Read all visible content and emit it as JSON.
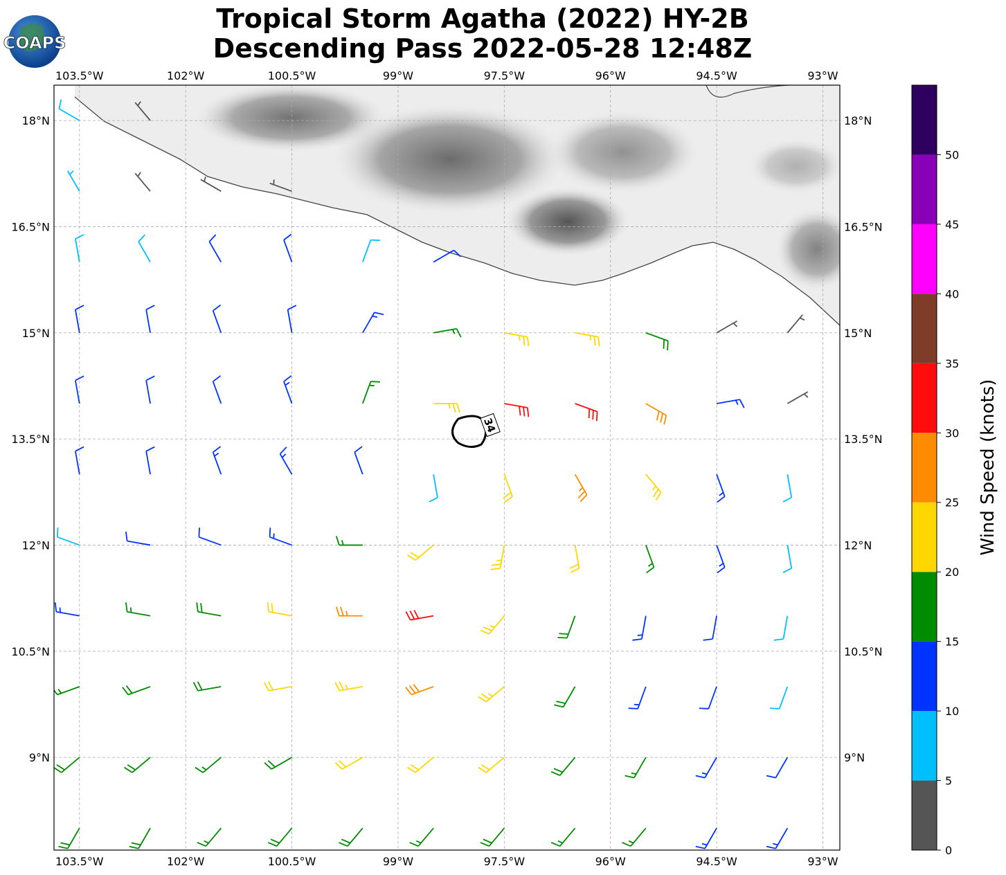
{
  "chart_data": {
    "type": "wind_barbs",
    "title": "Tropical Storm Agatha (2022) HY-2B",
    "subtitle": "Descending Pass 2022-05-28 12:48Z",
    "logo_text": "COAPS",
    "xlim": [
      -103.86,
      -92.76
    ],
    "ylim": [
      7.69,
      18.5
    ],
    "xticks": [
      {
        "value": -103.5,
        "label": "103.5°W"
      },
      {
        "value": -102,
        "label": "102°W"
      },
      {
        "value": -100.5,
        "label": "100.5°W"
      },
      {
        "value": -99,
        "label": "99°W"
      },
      {
        "value": -97.5,
        "label": "97.5°W"
      },
      {
        "value": -96,
        "label": "96°W"
      },
      {
        "value": -94.5,
        "label": "94.5°W"
      },
      {
        "value": -93,
        "label": "93°W"
      }
    ],
    "yticks": [
      {
        "value": 9,
        "label": "9°N"
      },
      {
        "value": 10.5,
        "label": "10.5°N"
      },
      {
        "value": 12,
        "label": "12°N"
      },
      {
        "value": 13.5,
        "label": "13.5°N"
      },
      {
        "value": 15,
        "label": "15°N"
      },
      {
        "value": 16.5,
        "label": "16.5°N"
      },
      {
        "value": 18,
        "label": "18°N"
      }
    ],
    "grid": true,
    "contour_level": 34,
    "colorbar": {
      "label": "Wind Speed (knots)",
      "bounds": [
        0,
        5,
        10,
        15,
        20,
        25,
        30,
        35,
        40,
        45,
        50,
        55
      ],
      "colors": [
        "#555555",
        "#00bfff",
        "#0033ff",
        "#008c00",
        "#ffd700",
        "#ff8c00",
        "#ff0d0d",
        "#7f3c28",
        "#ff00ff",
        "#8a00b8",
        "#2e0060"
      ],
      "ticks": [
        0,
        5,
        10,
        15,
        20,
        25,
        30,
        35,
        40,
        45,
        50
      ]
    },
    "wind": {
      "lons": [
        -103.5,
        -102.5,
        -101.5,
        -100.5,
        -99.5,
        -98.5,
        -97.5,
        -96.5,
        -95.5,
        -94.5,
        -93.5
      ],
      "lats": [
        18,
        17,
        16,
        15,
        14,
        13,
        12,
        11,
        10,
        9,
        8
      ],
      "speed": [
        [
          8,
          4,
          null,
          null,
          null,
          null,
          null,
          null,
          null,
          null,
          null
        ],
        [
          6,
          3,
          4,
          4,
          null,
          null,
          null,
          null,
          null,
          null,
          null
        ],
        [
          8,
          9,
          11,
          10,
          9,
          12,
          null,
          null,
          null,
          null,
          null
        ],
        [
          10,
          11,
          12,
          12,
          13,
          17,
          24,
          24,
          18,
          4,
          4
        ],
        [
          11,
          11,
          12,
          13,
          16,
          23,
          31,
          31,
          28,
          14,
          4
        ],
        [
          11,
          12,
          13,
          13,
          12,
          8,
          22,
          26,
          24,
          14,
          8
        ],
        [
          9,
          12,
          12,
          14,
          17,
          22,
          24,
          21,
          16,
          13,
          9
        ],
        [
          13,
          16,
          19,
          22,
          26,
          31,
          24,
          19,
          14,
          12,
          8
        ],
        [
          16,
          18,
          19,
          22,
          24,
          28,
          23,
          18,
          14,
          12,
          9
        ],
        [
          18,
          18,
          17,
          19,
          21,
          22,
          21,
          19,
          16,
          13,
          11
        ],
        [
          19,
          18,
          17,
          18,
          18,
          17,
          18,
          17,
          15,
          14,
          13
        ]
      ],
      "direction": [
        [
          300,
          320,
          null,
          null,
          null,
          null,
          null,
          null,
          null,
          null,
          null
        ],
        [
          330,
          320,
          300,
          290,
          null,
          null,
          null,
          null,
          null,
          null,
          null
        ],
        [
          350,
          330,
          330,
          340,
          20,
          60,
          null,
          null,
          null,
          null,
          null
        ],
        [
          350,
          350,
          340,
          350,
          30,
          80,
          100,
          100,
          110,
          60,
          40
        ],
        [
          350,
          350,
          340,
          340,
          20,
          90,
          100,
          110,
          120,
          80,
          60
        ],
        [
          350,
          350,
          340,
          330,
          340,
          170,
          160,
          150,
          140,
          160,
          170
        ],
        [
          290,
          280,
          290,
          290,
          270,
          230,
          190,
          170,
          160,
          160,
          170
        ],
        [
          280,
          280,
          280,
          280,
          270,
          260,
          220,
          200,
          190,
          190,
          190
        ],
        [
          250,
          250,
          260,
          260,
          260,
          250,
          230,
          210,
          200,
          200,
          200
        ],
        [
          230,
          230,
          230,
          240,
          240,
          230,
          230,
          220,
          210,
          210,
          210
        ],
        [
          210,
          210,
          220,
          220,
          220,
          220,
          220,
          220,
          220,
          210,
          210
        ]
      ]
    }
  }
}
